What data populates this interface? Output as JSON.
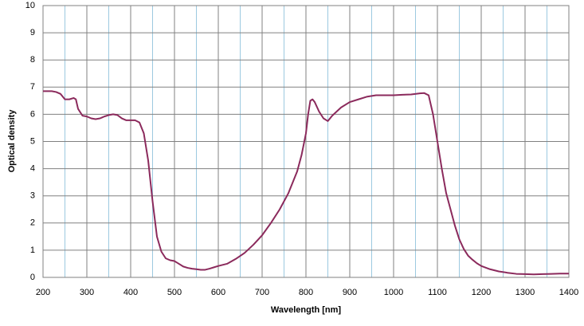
{
  "chart_data": {
    "type": "line",
    "xlabel": "Wavelength [nm]",
    "ylabel": "Optical density",
    "color": "#8b2a5c",
    "xlim": [
      200,
      1400
    ],
    "ylim": [
      0,
      10
    ],
    "xticks": [
      200,
      300,
      400,
      500,
      600,
      700,
      800,
      900,
      1000,
      1100,
      1200,
      1300,
      1400
    ],
    "xminorticks": [
      250,
      350,
      450,
      550,
      650,
      750,
      850,
      950,
      1050,
      1150,
      1250,
      1350
    ],
    "yticks": [
      0,
      1,
      2,
      3,
      4,
      5,
      6,
      7,
      8,
      9,
      10
    ],
    "grid": true,
    "x": [
      200,
      210,
      220,
      230,
      240,
      250,
      260,
      270,
      275,
      280,
      290,
      300,
      310,
      320,
      330,
      340,
      350,
      360,
      370,
      380,
      390,
      400,
      410,
      420,
      430,
      440,
      450,
      460,
      470,
      480,
      490,
      500,
      510,
      520,
      530,
      540,
      550,
      560,
      570,
      580,
      590,
      600,
      620,
      640,
      660,
      680,
      700,
      720,
      740,
      760,
      780,
      790,
      800,
      805,
      810,
      815,
      820,
      830,
      840,
      850,
      860,
      870,
      880,
      900,
      920,
      940,
      960,
      980,
      1000,
      1020,
      1040,
      1060,
      1070,
      1080,
      1090,
      1100,
      1110,
      1120,
      1130,
      1140,
      1150,
      1160,
      1170,
      1180,
      1190,
      1200,
      1220,
      1240,
      1260,
      1280,
      1300,
      1320,
      1340,
      1360,
      1380,
      1400
    ],
    "values": [
      6.85,
      6.85,
      6.85,
      6.82,
      6.75,
      6.55,
      6.55,
      6.6,
      6.55,
      6.2,
      5.95,
      5.92,
      5.85,
      5.82,
      5.85,
      5.92,
      5.97,
      6.0,
      5.97,
      5.85,
      5.78,
      5.78,
      5.78,
      5.7,
      5.3,
      4.3,
      2.8,
      1.5,
      0.95,
      0.7,
      0.63,
      0.6,
      0.5,
      0.4,
      0.35,
      0.32,
      0.3,
      0.28,
      0.28,
      0.32,
      0.37,
      0.42,
      0.5,
      0.68,
      0.9,
      1.2,
      1.55,
      2.0,
      2.5,
      3.1,
      3.9,
      4.5,
      5.3,
      6.0,
      6.5,
      6.55,
      6.45,
      6.1,
      5.85,
      5.75,
      5.95,
      6.1,
      6.25,
      6.45,
      6.55,
      6.65,
      6.7,
      6.7,
      6.7,
      6.72,
      6.73,
      6.77,
      6.78,
      6.7,
      6.0,
      5.0,
      4.0,
      3.1,
      2.5,
      1.9,
      1.4,
      1.05,
      0.8,
      0.65,
      0.52,
      0.42,
      0.3,
      0.22,
      0.17,
      0.13,
      0.12,
      0.11,
      0.12,
      0.13,
      0.14,
      0.14
    ]
  }
}
